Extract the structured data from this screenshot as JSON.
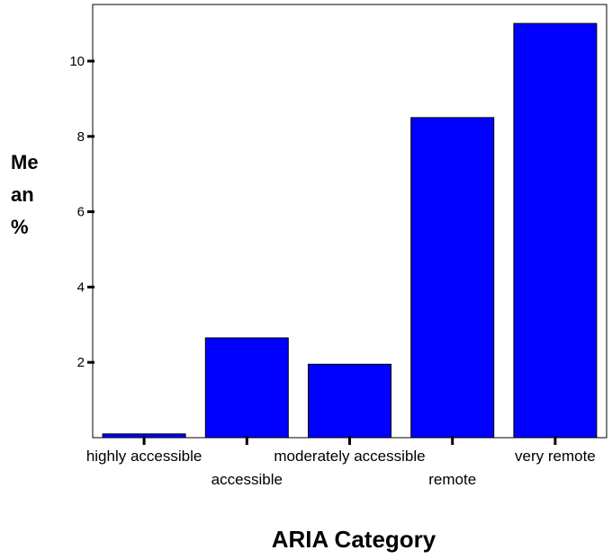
{
  "chart_data": {
    "type": "bar",
    "categories": [
      "highly accessible",
      "accessible",
      "moderately accessible",
      "remote",
      "very remote"
    ],
    "values": [
      0.1,
      2.65,
      1.95,
      8.5,
      11.0
    ],
    "xlabel": "ARIA Category",
    "ylabel": "Mean %",
    "ylabel_lines": [
      "Me",
      "an",
      "%"
    ],
    "yticks": [
      2,
      4,
      6,
      8,
      10
    ],
    "ylim": [
      0,
      11.5
    ],
    "grid": false,
    "bar_color": "#0000ff",
    "bar_edge_color": "#000000"
  }
}
